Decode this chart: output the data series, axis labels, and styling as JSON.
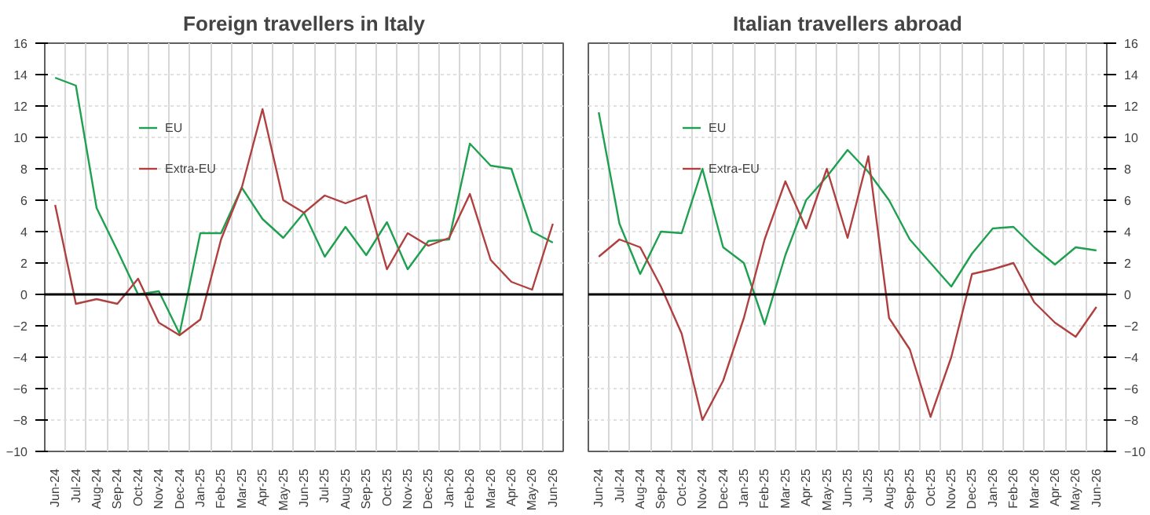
{
  "chart_data": [
    {
      "type": "line",
      "title": "Foreign travellers in Italy",
      "categories": [
        "Jun-24",
        "Jul-24",
        "Aug-24",
        "Sep-24",
        "Oct-24",
        "Nov-24",
        "Dec-24",
        "Jan-25",
        "Feb-25",
        "Mar-25",
        "Apr-25",
        "May-25",
        "Jun-25",
        "Jul-25",
        "Aug-25",
        "Sep-25",
        "Oct-25",
        "Nov-25",
        "Dec-25",
        "Jan-26",
        "Feb-26",
        "Mar-26",
        "Apr-26",
        "May-26",
        "Jun-26"
      ],
      "series": [
        {
          "name": "EU",
          "color": "#1fa050",
          "values": [
            13.8,
            13.3,
            5.5,
            2.8,
            0.0,
            0.2,
            -2.5,
            3.9,
            3.9,
            6.8,
            4.8,
            3.6,
            5.2,
            2.4,
            4.3,
            2.5,
            4.6,
            1.6,
            3.4,
            3.5,
            9.6,
            8.2,
            8.0,
            4.0,
            3.3
          ]
        },
        {
          "name": "Extra-EU",
          "color": "#b04040",
          "values": [
            5.7,
            -0.6,
            -0.3,
            -0.6,
            1.0,
            -1.8,
            -2.6,
            -1.6,
            3.5,
            6.8,
            11.8,
            6.0,
            5.2,
            6.3,
            5.8,
            6.3,
            1.6,
            3.9,
            3.1,
            3.6,
            6.4,
            2.2,
            0.8,
            0.3,
            4.5
          ]
        }
      ],
      "ylim": [
        -10,
        16
      ],
      "yticks": [
        -10,
        -8,
        -6,
        -4,
        -2,
        0,
        2,
        4,
        6,
        8,
        10,
        12,
        14,
        16
      ],
      "ref_lines": [
        {
          "axis": "y",
          "value": 0,
          "color": "#000000"
        }
      ],
      "grid": true,
      "legend": "top left"
    },
    {
      "type": "line",
      "title": "Italian travellers abroad",
      "categories": [
        "Jun-24",
        "Jul-24",
        "Aug-24",
        "Sep-24",
        "Oct-24",
        "Nov-24",
        "Dec-24",
        "Jan-25",
        "Feb-25",
        "Mar-25",
        "Apr-25",
        "May-25",
        "Jun-25",
        "Jul-25",
        "Aug-25",
        "Sep-25",
        "Oct-25",
        "Nov-25",
        "Dec-25",
        "Jan-26",
        "Feb-26",
        "Mar-26",
        "Apr-26",
        "May-26",
        "Jun-26"
      ],
      "series": [
        {
          "name": "EU",
          "color": "#1fa050",
          "values": [
            11.6,
            4.5,
            1.3,
            4.0,
            3.9,
            8.0,
            3.0,
            2.0,
            -1.9,
            2.5,
            6.0,
            7.5,
            9.2,
            7.8,
            6.0,
            3.5,
            2.0,
            0.5,
            2.6,
            4.2,
            4.3,
            3.0,
            1.9,
            3.0,
            2.8
          ]
        },
        {
          "name": "Extra-EU",
          "color": "#b04040",
          "values": [
            2.4,
            3.5,
            3.0,
            0.5,
            -2.5,
            -8.0,
            -5.5,
            -1.5,
            3.5,
            7.2,
            4.2,
            8.0,
            3.6,
            8.8,
            -1.5,
            -3.5,
            -7.8,
            -4.0,
            1.3,
            1.6,
            2.0,
            -0.5,
            -1.8,
            -2.7,
            -0.8
          ]
        }
      ],
      "ylim": [
        -10,
        16
      ],
      "yticks": [
        -10,
        -8,
        -6,
        -4,
        -2,
        0,
        2,
        4,
        6,
        8,
        10,
        12,
        14,
        16
      ],
      "ref_lines": [
        {
          "axis": "y",
          "value": 0,
          "color": "#000000"
        }
      ],
      "grid": true,
      "legend": "top left"
    }
  ]
}
